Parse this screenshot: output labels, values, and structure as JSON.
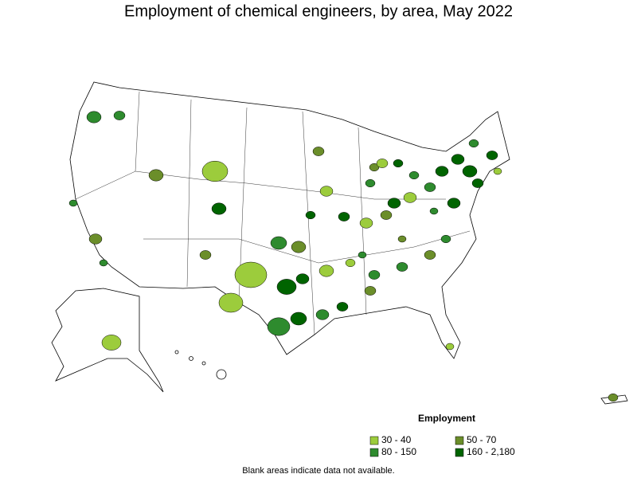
{
  "header": {
    "title": "Employment of chemical engineers, by area, May 2022"
  },
  "legend": {
    "title": "Employment",
    "items": [
      {
        "label": "30 - 40",
        "color": "#9ccc3c"
      },
      {
        "label": "50 - 70",
        "color": "#6b8e2a"
      },
      {
        "label": "80 - 150",
        "color": "#2e8b2e"
      },
      {
        "label": "160 - 2,180",
        "color": "#006400"
      }
    ]
  },
  "note": "Blank areas indicate data not available."
}
